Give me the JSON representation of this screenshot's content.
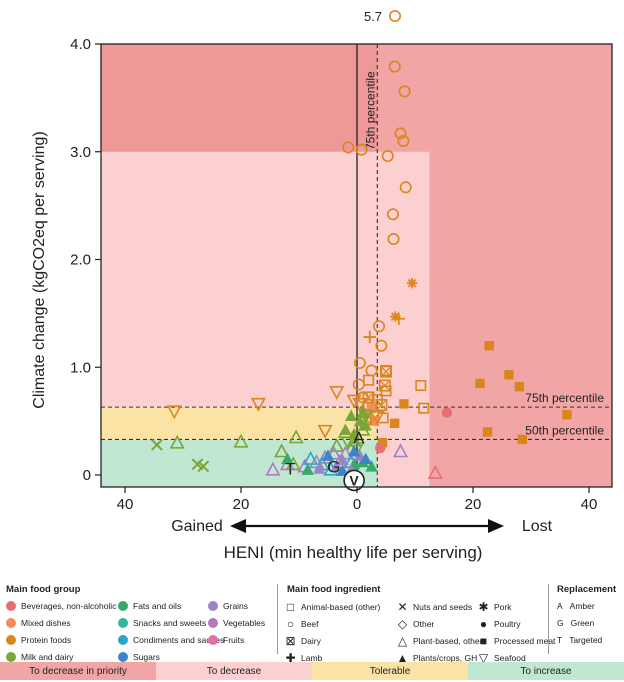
{
  "chart_data": {
    "type": "scatter",
    "xlabel": "HENI (min healthy life per serving)",
    "ylabel": "Climate change (kgCO2eq per serving)",
    "x_ticks": [
      40,
      20,
      0,
      20,
      40
    ],
    "y_ticks": [
      "0",
      "1.0",
      "2.0",
      "3.0",
      "4.0"
    ],
    "xlim": [
      -43,
      45
    ],
    "ylim": [
      0,
      4.2
    ],
    "direction_left": "Gained",
    "direction_right": "Lost",
    "outlier_label": "5.7",
    "outlier": {
      "x": 6.5,
      "y": 5.7
    },
    "percentile_lines": {
      "x75": {
        "x": 3.5,
        "label": "75th percentile"
      },
      "y75": {
        "y": 0.63,
        "label": "75th percentile"
      },
      "y50": {
        "y": 0.33,
        "label": "50th percentile"
      }
    },
    "zones": {
      "decrease_priority_color": "#f2a5a5",
      "decrease_priority_dark": "#ee9898",
      "decrease_color": "#fcd0d0",
      "tolerable_color": "#fbe3a6",
      "increase_color": "#bfe7d2"
    },
    "groups": [
      {
        "name": "Beverages, non-alcoholic",
        "color": "#e76f6f"
      },
      {
        "name": "Mixed dishes",
        "color": "#f18d5d"
      },
      {
        "name": "Protein foods",
        "color": "#d9861c"
      },
      {
        "name": "Milk and dairy",
        "color": "#7aa637"
      },
      {
        "name": "Fats and oils",
        "color": "#3aa869"
      },
      {
        "name": "Snacks and sweets",
        "color": "#2fb89a"
      },
      {
        "name": "Condiments and sauces",
        "color": "#2ba6c6"
      },
      {
        "name": "Sugars",
        "color": "#3b85c8"
      },
      {
        "name": "Grains",
        "color": "#9b84c4"
      },
      {
        "name": "Vegetables",
        "color": "#b477c2"
      },
      {
        "name": "Fruits",
        "color": "#e36fa7"
      }
    ],
    "series": [
      {
        "name": "Beef",
        "shape": "circle",
        "color": "#d9861c",
        "points": [
          [
            6.5,
            3.79
          ],
          [
            8.2,
            3.56
          ],
          [
            7.5,
            3.17
          ],
          [
            8.0,
            3.1
          ],
          [
            -1.5,
            3.04
          ],
          [
            0.8,
            3.02
          ],
          [
            5.3,
            2.96
          ],
          [
            8.4,
            2.67
          ],
          [
            6.2,
            2.42
          ],
          [
            6.3,
            2.19
          ],
          [
            3.8,
            1.38
          ],
          [
            4.2,
            1.2
          ],
          [
            0.5,
            1.04
          ],
          [
            2.5,
            0.97
          ],
          [
            0.3,
            0.84
          ],
          [
            1.0,
            0.72
          ],
          [
            2.0,
            0.65
          ]
        ]
      },
      {
        "name": "Pork",
        "shape": "asterisk",
        "color": "#d9861c",
        "points": [
          [
            9.5,
            1.78
          ],
          [
            6.6,
            1.47
          ]
        ]
      },
      {
        "name": "Lamb",
        "shape": "plus",
        "color": "#d9861c",
        "points": [
          [
            7.2,
            1.45
          ],
          [
            2.2,
            1.28
          ]
        ]
      },
      {
        "name": "Animal-based (other)",
        "shape": "square",
        "color": "#d9861c",
        "points": [
          [
            11.0,
            0.83
          ],
          [
            5.0,
            0.97
          ],
          [
            2.0,
            0.88
          ],
          [
            11.5,
            0.62
          ],
          [
            5.0,
            0.78
          ],
          [
            3.5,
            0.7
          ],
          [
            4.5,
            0.53
          ]
        ]
      },
      {
        "name": "Processed meat",
        "shape": "filledsquare",
        "color": "#d9861c",
        "points": [
          [
            22.8,
            1.2
          ],
          [
            21.2,
            0.85
          ],
          [
            28.0,
            0.82
          ],
          [
            26.2,
            0.93
          ],
          [
            36.2,
            0.56
          ],
          [
            22.5,
            0.4
          ],
          [
            28.5,
            0.33
          ],
          [
            8.1,
            0.66
          ],
          [
            6.5,
            0.48
          ],
          [
            4.4,
            0.3
          ]
        ]
      },
      {
        "name": "Processed meat (mixed dishes)",
        "shape": "filledsquare",
        "color": "#f18d5d",
        "points": [
          [
            2.5,
            0.62
          ],
          [
            3.0,
            0.5
          ],
          [
            1.5,
            0.57
          ]
        ]
      },
      {
        "name": "Poultry",
        "shape": "filledcircle",
        "color": "#e76f6f",
        "points": [
          [
            15.5,
            0.58
          ],
          [
            4.0,
            0.25
          ]
        ]
      },
      {
        "name": "Dairy",
        "shape": "xsquare",
        "color": "#d9861c",
        "points": [
          [
            5.0,
            0.96
          ],
          [
            4.8,
            0.83
          ],
          [
            2.0,
            0.72
          ],
          [
            4.2,
            0.65
          ],
          [
            1.5,
            0.52
          ]
        ]
      },
      {
        "name": "Seafood",
        "shape": "trianglev",
        "color": "#d9861c",
        "points": [
          [
            -31.5,
            0.59
          ],
          [
            -17.0,
            0.66
          ],
          [
            -5.5,
            0.41
          ],
          [
            -3.5,
            0.77
          ],
          [
            -0.5,
            0.69
          ],
          [
            0.5,
            0.66
          ],
          [
            3.5,
            0.54
          ]
        ]
      },
      {
        "name": "Seafood (green)",
        "shape": "trianglev",
        "color": "#7aa637",
        "points": [
          [
            -1.5,
            0.3
          ],
          [
            0.0,
            0.25
          ],
          [
            1.5,
            0.55
          ]
        ]
      },
      {
        "name": "Plant-based, other",
        "shape": "triangle",
        "color": "#7aa637",
        "points": [
          [
            -31.0,
            0.3
          ],
          [
            -20.0,
            0.31
          ],
          [
            -10.5,
            0.35
          ],
          [
            -13.0,
            0.22
          ],
          [
            -11.0,
            0.1
          ],
          [
            -3.5,
            0.27
          ],
          [
            -2.0,
            0.4
          ],
          [
            -0.5,
            0.32
          ],
          [
            1.0,
            0.42
          ]
        ]
      },
      {
        "name": "Plant-based, other (vegetables)",
        "shape": "triangle",
        "color": "#b477c2",
        "points": [
          [
            -14.5,
            0.05
          ],
          [
            -12.0,
            0.1
          ],
          [
            -9.0,
            0.08
          ],
          [
            -7.0,
            0.12
          ],
          [
            -5.5,
            0.16
          ],
          [
            -3.0,
            0.12
          ],
          [
            -2.0,
            0.2
          ]
        ]
      },
      {
        "name": "Plant-based, other (beverages)",
        "shape": "triangle",
        "color": "#e76f6f",
        "points": [
          [
            13.5,
            0.02
          ]
        ]
      },
      {
        "name": "Plant-based, other (condiments)",
        "shape": "triangle",
        "color": "#2ba6c6",
        "points": [
          [
            -8.0,
            0.15
          ],
          [
            -6.0,
            0.1
          ],
          [
            -4.5,
            0.05
          ],
          [
            -1.0,
            0.12
          ]
        ]
      },
      {
        "name": "Plant-based, other (grains)",
        "shape": "triangle",
        "color": "#9b84c4",
        "points": [
          [
            7.5,
            0.22
          ],
          [
            -4.0,
            0.2
          ]
        ]
      },
      {
        "name": "Nuts and seeds",
        "shape": "x",
        "color": "#7aa637",
        "points": [
          [
            -34.5,
            0.28
          ],
          [
            -27.5,
            0.1
          ],
          [
            -26.5,
            0.08
          ]
        ]
      },
      {
        "name": "Plants/crops, GH",
        "shape": "filledtriangle",
        "color": "#7aa637",
        "points": [
          [
            -1.0,
            0.55
          ],
          [
            0.5,
            0.5
          ],
          [
            1.5,
            0.46
          ],
          [
            -0.5,
            0.38
          ],
          [
            -2.0,
            0.42
          ],
          [
            1.0,
            0.58
          ]
        ]
      },
      {
        "name": "Plants/crops, GH (fats)",
        "shape": "filledtriangle",
        "color": "#3aa869",
        "points": [
          [
            2.5,
            0.08
          ],
          [
            1.0,
            0.12
          ],
          [
            -0.5,
            0.1
          ],
          [
            -12.0,
            0.15
          ],
          [
            -8.5,
            0.05
          ]
        ]
      },
      {
        "name": "Plants/crops, GH (grains)",
        "shape": "filledtriangle",
        "color": "#9b84c4",
        "points": [
          [
            -3.5,
            0.08
          ],
          [
            -2.5,
            0.14
          ],
          [
            -1.0,
            0.05
          ],
          [
            0.5,
            0.18
          ],
          [
            -6.5,
            0.06
          ]
        ]
      },
      {
        "name": "Plants/crops, GH (sugars)",
        "shape": "filledtriangle",
        "color": "#3b85c8",
        "points": [
          [
            -5.0,
            0.18
          ],
          [
            -2.5,
            0.04
          ],
          [
            -0.5,
            0.22
          ],
          [
            1.5,
            0.15
          ]
        ]
      }
    ],
    "replacement_markers": [
      {
        "letter": "A",
        "x": 0.3,
        "y": 0.35
      },
      {
        "letter": "G",
        "x": -4.0,
        "y": 0.08
      },
      {
        "letter": "T",
        "x": -11.5,
        "y": 0.06
      },
      {
        "letter": "V",
        "x": -0.5,
        "y": -0.05
      }
    ]
  },
  "legend": {
    "group_title": "Main food group",
    "groups_col1": [
      "Beverages, non-alcoholic",
      "Mixed dishes",
      "Protein foods",
      "Milk and dairy"
    ],
    "groups_col2": [
      "Fats and oils",
      "Snacks and sweets",
      "Condiments and sauces",
      "Sugars"
    ],
    "groups_col3": [
      "Grains",
      "Vegetables",
      "Fruits"
    ],
    "colors_col1": [
      "#e76f6f",
      "#f18d5d",
      "#d9861c",
      "#7aa637"
    ],
    "colors_col2": [
      "#3aa869",
      "#2fb89a",
      "#2ba6c6",
      "#3b85c8"
    ],
    "colors_col3": [
      "#9b84c4",
      "#b477c2",
      "#e36fa7"
    ],
    "ingredient_title": "Main food ingredient",
    "ingredients_col1": [
      "Animal-based (other)",
      "Beef",
      "Dairy",
      "Lamb"
    ],
    "ingredients_col2": [
      "Nuts and seeds",
      "Other",
      "Plant-based, other",
      "Plants/crops, GH"
    ],
    "ingredients_col3": [
      "Pork",
      "Poultry",
      "Processed meat",
      "Seafood"
    ],
    "replacement_title": "Replacement",
    "replacements": [
      {
        "letter": "A",
        "label": "Amber"
      },
      {
        "letter": "G",
        "label": "Green"
      },
      {
        "letter": "T",
        "label": "Targeted"
      }
    ],
    "bands": [
      {
        "label": "To decrease in priority",
        "color": "#f2a5a5"
      },
      {
        "label": "To decrease",
        "color": "#fcd0d0"
      },
      {
        "label": "Tolerable",
        "color": "#fbe3a6"
      },
      {
        "label": "To increase",
        "color": "#bfe7d2"
      }
    ]
  }
}
